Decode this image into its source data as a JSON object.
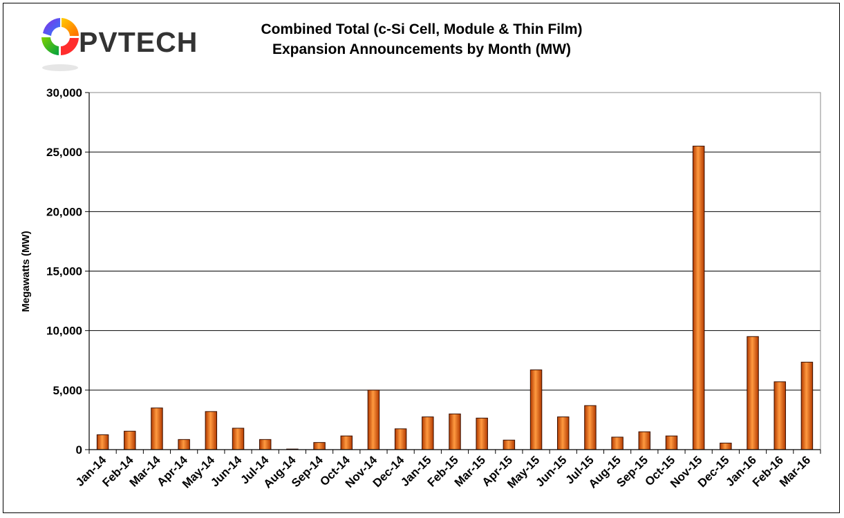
{
  "logo": {
    "text": "PVTECH"
  },
  "chart_data": {
    "type": "bar",
    "title": [
      "Combined Total (c-Si Cell, Module & Thin Film)",
      "Expansion Announcements by Month (MW)"
    ],
    "xlabel": "",
    "ylabel": "Megawatts (MW)",
    "ylim": [
      0,
      30000
    ],
    "yticks": [
      "0",
      "5,000",
      "10,000",
      "15,000",
      "20,000",
      "25,000",
      "30,000"
    ],
    "grid": true,
    "categories": [
      "Jan-14",
      "Feb-14",
      "Mar-14",
      "Apr-14",
      "May-14",
      "Jun-14",
      "Jul-14",
      "Aug-14",
      "Sep-14",
      "Oct-14",
      "Nov-14",
      "Dec-14",
      "Jan-15",
      "Feb-15",
      "Mar-15",
      "Apr-15",
      "May-15",
      "Jun-15",
      "Jul-15",
      "Aug-15",
      "Sep-15",
      "Oct-15",
      "Nov-15",
      "Dec-15",
      "Jan-16",
      "Feb-16",
      "Mar-16"
    ],
    "values": [
      1250,
      1550,
      3500,
      850,
      3200,
      1800,
      850,
      50,
      600,
      1150,
      5000,
      1750,
      2750,
      3000,
      2650,
      800,
      6700,
      2750,
      3700,
      1050,
      1500,
      1150,
      25500,
      550,
      9500,
      5700,
      7350
    ],
    "colors": {
      "bar_light": "#ff9a40",
      "bar_dark": "#b33a00",
      "bar_edge": "#3a1000"
    }
  }
}
